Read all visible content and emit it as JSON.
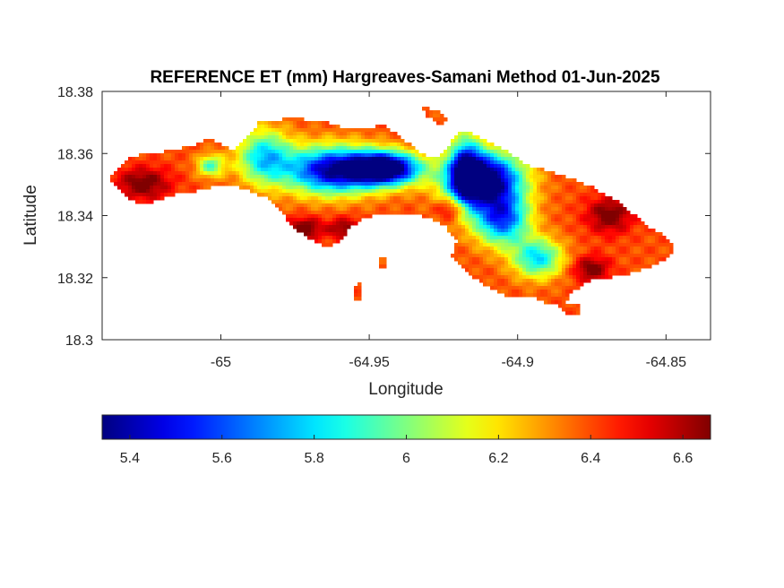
{
  "title": "REFERENCE ET (mm) Hargreaves-Samani Method  01-Jun-2025",
  "chart_data": {
    "type": "heatmap",
    "title": "REFERENCE ET (mm) Hargreaves-Samani Method  01-Jun-2025",
    "xlabel": "Longitude",
    "ylabel": "Latitude",
    "xlim": [
      -65.04,
      -64.835
    ],
    "ylim": [
      18.3,
      18.38
    ],
    "xticks": [
      -65,
      -64.95,
      -64.9,
      -64.85
    ],
    "xtick_labels": [
      "-65",
      "-64.95",
      "-64.9",
      "-64.85"
    ],
    "yticks": [
      18.3,
      18.32,
      18.34,
      18.36,
      18.38
    ],
    "ytick_labels": [
      "18.3",
      "18.32",
      "18.34",
      "18.36",
      "18.38"
    ],
    "colorbar": {
      "colormap": "jet",
      "range": [
        5.34,
        6.66
      ],
      "ticks": [
        5.4,
        5.6,
        5.8,
        6.0,
        6.2,
        6.4,
        6.6
      ],
      "tick_labels": [
        "5.4",
        "5.6",
        "5.8",
        "6",
        "6.2",
        "6.4",
        "6.6"
      ],
      "location": "bottom"
    },
    "grid": false
  }
}
